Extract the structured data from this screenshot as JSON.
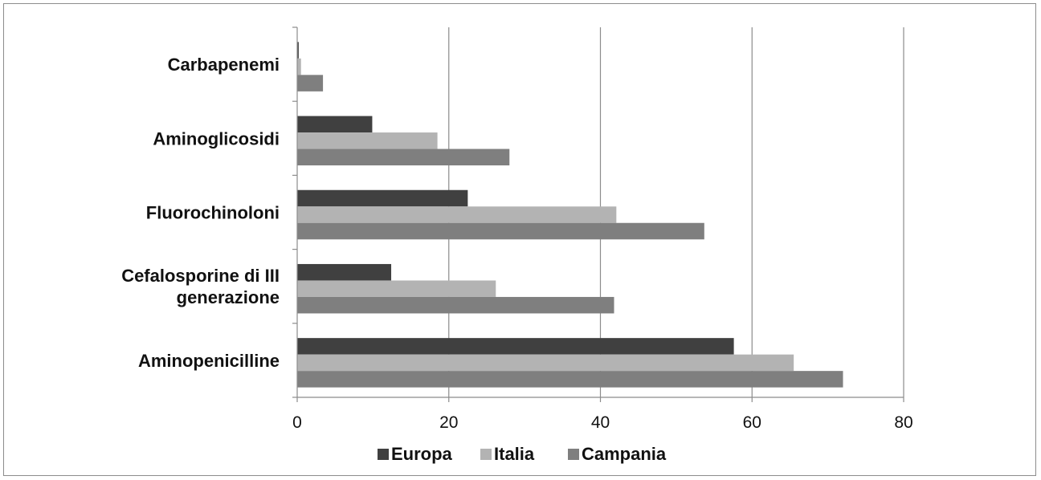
{
  "chart_data": {
    "type": "bar",
    "orientation": "horizontal",
    "title": "",
    "xlabel": "",
    "ylabel": "",
    "xlim": [
      0,
      80
    ],
    "x_ticks": [
      0,
      20,
      40,
      60,
      80
    ],
    "grid": "vertical major gridlines",
    "legend_position": "bottom",
    "categories": [
      [
        "Carbapenemi"
      ],
      [
        "Aminoglicosidi"
      ],
      [
        "Fluorochinoloni"
      ],
      [
        "Cefalosporine di III",
        "generazione"
      ],
      [
        "Aminopenicilline"
      ]
    ],
    "series": [
      {
        "name": "Europa",
        "color": "#404040",
        "values": [
          0.2,
          9.9,
          22.5,
          12.4,
          57.6
        ]
      },
      {
        "name": "Italia",
        "color": "#b3b3b3",
        "values": [
          0.5,
          18.5,
          42.1,
          26.2,
          65.5
        ]
      },
      {
        "name": "Campania",
        "color": "#7f7f7f",
        "values": [
          3.4,
          28.0,
          53.7,
          41.8,
          72.0
        ]
      }
    ]
  }
}
